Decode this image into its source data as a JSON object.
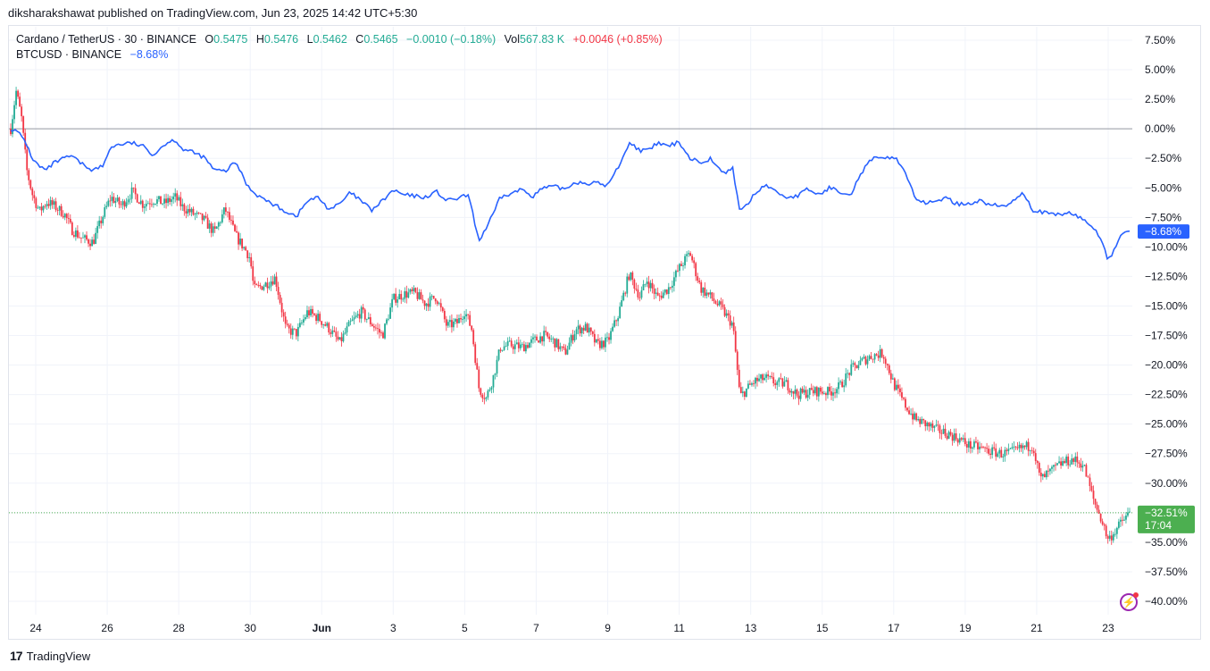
{
  "header": {
    "publisher_line": "diksharakshawat published on TradingView.com, Jun 23, 2025 14:42 UTC+5:30"
  },
  "legend": {
    "symbol": "Cardano / TetherUS · 30 · BINANCE",
    "o_label": "O",
    "o_value": "0.5475",
    "h_label": "H",
    "h_value": "0.5476",
    "l_label": "L",
    "l_value": "0.5462",
    "c_label": "C",
    "c_value": "0.5465",
    "change": "−0.0010 (−0.18%)",
    "vol_label": "Vol",
    "vol_value": "567.83 K",
    "vol_change": "+0.0046 (+0.85%)",
    "compare_symbol": "BTCUSD · BINANCE",
    "compare_value": "−8.68%"
  },
  "footer": {
    "logo": "17",
    "brand": "TradingView"
  },
  "icons": {
    "bottom_right": "lightning-icon"
  },
  "colors": {
    "up": "#22ab94",
    "down": "#f23645",
    "compare_line": "#2962ff",
    "grid": "#f0f3fa",
    "zero_line": "#9598a1",
    "last_price": "#4caf50"
  },
  "chart_data": {
    "type": "line",
    "y_unit": "%",
    "ylim": [
      -41,
      9
    ],
    "y_ticks": [
      "7.50%",
      "5.00%",
      "2.50%",
      "0.00%",
      "−2.50%",
      "−5.00%",
      "−7.50%",
      "−10.00%",
      "−12.50%",
      "−15.00%",
      "−17.50%",
      "−20.00%",
      "−22.50%",
      "−25.00%",
      "−27.50%",
      "−30.00%",
      "−32.50%",
      "−35.00%",
      "−37.50%",
      "−40.00%"
    ],
    "y_tick_values": [
      7.5,
      5,
      2.5,
      0,
      -2.5,
      -5,
      -7.5,
      -10,
      -12.5,
      -15,
      -17.5,
      -20,
      -22.5,
      -25,
      -27.5,
      -30,
      -32.5,
      -35,
      -37.5,
      -40
    ],
    "x_ticks": [
      "24",
      "26",
      "28",
      "30",
      "Jun",
      "3",
      "5",
      "7",
      "9",
      "11",
      "13",
      "15",
      "17",
      "19",
      "21",
      "23"
    ],
    "x_tick_days": [
      24,
      26,
      28,
      30,
      32,
      34,
      36,
      38,
      40,
      42,
      44,
      46,
      48,
      50,
      52,
      54
    ],
    "x_range_days": [
      23.3,
      54.6
    ],
    "series": [
      {
        "name": "BTCUSD · BINANCE",
        "style": "line",
        "x": [
          23.3,
          23.5,
          23.7,
          23.9,
          24.1,
          24.3,
          24.5,
          24.8,
          25.0,
          25.3,
          25.6,
          25.9,
          26.1,
          26.4,
          26.7,
          27.0,
          27.3,
          27.6,
          27.9,
          28.1,
          28.4,
          28.7,
          29.0,
          29.3,
          29.6,
          29.9,
          30.1,
          30.4,
          30.7,
          31.0,
          31.3,
          31.6,
          31.9,
          32.2,
          32.5,
          32.8,
          33.1,
          33.4,
          33.7,
          34.0,
          34.3,
          34.6,
          34.9,
          35.2,
          35.5,
          35.8,
          36.1,
          36.4,
          36.6,
          36.8,
          37.0,
          37.3,
          37.6,
          37.9,
          38.2,
          38.5,
          38.8,
          39.1,
          39.4,
          39.7,
          40.0,
          40.3,
          40.6,
          40.9,
          41.1,
          41.4,
          41.7,
          42.0,
          42.3,
          42.6,
          42.9,
          43.2,
          43.5,
          43.7,
          43.9,
          44.1,
          44.4,
          44.7,
          45.0,
          45.3,
          45.6,
          45.9,
          46.2,
          46.5,
          46.8,
          47.1,
          47.4,
          47.7,
          48.0,
          48.3,
          48.6,
          48.9,
          49.2,
          49.5,
          49.8,
          50.1,
          50.4,
          50.7,
          51.0,
          51.3,
          51.6,
          51.9,
          52.1,
          52.3,
          52.6,
          52.9,
          53.2,
          53.4,
          53.6,
          53.8,
          54.0,
          54.2,
          54.4,
          54.6
        ],
        "values": [
          0.0,
          -0.3,
          -1.0,
          -2.5,
          -3.2,
          -3.5,
          -2.9,
          -2.5,
          -2.3,
          -3.0,
          -3.5,
          -3.1,
          -1.5,
          -1.3,
          -1.2,
          -1.5,
          -2.2,
          -1.3,
          -0.9,
          -1.7,
          -2.0,
          -2.4,
          -3.5,
          -3.6,
          -2.8,
          -4.7,
          -5.4,
          -6.0,
          -6.5,
          -7.0,
          -7.4,
          -6.1,
          -5.8,
          -6.8,
          -6.4,
          -5.4,
          -6.1,
          -6.9,
          -6.1,
          -5.2,
          -5.6,
          -5.7,
          -5.8,
          -5.3,
          -6.1,
          -5.9,
          -5.6,
          -9.5,
          -8.4,
          -7.2,
          -5.8,
          -5.5,
          -5.1,
          -5.7,
          -5.0,
          -4.9,
          -5.1,
          -4.5,
          -4.6,
          -4.6,
          -4.8,
          -3.2,
          -1.2,
          -1.8,
          -1.9,
          -1.2,
          -1.5,
          -1.1,
          -2.5,
          -2.8,
          -2.5,
          -3.8,
          -3.4,
          -7.0,
          -6.4,
          -5.6,
          -4.7,
          -5.3,
          -5.8,
          -5.7,
          -5.1,
          -5.6,
          -5.0,
          -5.3,
          -5.5,
          -3.7,
          -2.5,
          -2.6,
          -2.3,
          -3.5,
          -5.8,
          -6.4,
          -6.0,
          -5.9,
          -6.4,
          -6.3,
          -6.1,
          -6.4,
          -6.6,
          -6.3,
          -5.3,
          -6.9,
          -7.0,
          -7.2,
          -7.3,
          -7.1,
          -7.5,
          -7.9,
          -8.4,
          -9.3,
          -11.1,
          -10.2,
          -8.7,
          -8.7
        ]
      },
      {
        "name": "Cardano / TetherUS · 30 · BINANCE",
        "style": "candles",
        "x": [
          23.3,
          23.45,
          23.6,
          23.75,
          23.9,
          24.1,
          24.3,
          24.5,
          24.8,
          25.0,
          25.3,
          25.6,
          25.9,
          26.1,
          26.4,
          26.7,
          27.0,
          27.3,
          27.6,
          27.9,
          28.1,
          28.4,
          28.7,
          29.0,
          29.3,
          29.6,
          29.9,
          30.0,
          30.1,
          30.4,
          30.7,
          31.0,
          31.3,
          31.6,
          31.9,
          32.2,
          32.5,
          32.8,
          33.1,
          33.4,
          33.7,
          34.0,
          34.3,
          34.6,
          34.9,
          35.2,
          35.5,
          35.8,
          36.0,
          36.2,
          36.4,
          36.6,
          36.8,
          37.0,
          37.3,
          37.6,
          37.9,
          38.2,
          38.5,
          38.8,
          39.1,
          39.4,
          39.7,
          40.0,
          40.3,
          40.6,
          40.9,
          41.1,
          41.4,
          41.7,
          42.0,
          42.3,
          42.6,
          42.9,
          43.2,
          43.5,
          43.7,
          43.9,
          44.1,
          44.4,
          44.7,
          45.0,
          45.3,
          45.6,
          45.9,
          46.2,
          46.5,
          46.8,
          47.1,
          47.4,
          47.7,
          48.0,
          48.3,
          48.6,
          48.9,
          49.2,
          49.5,
          49.8,
          50.1,
          50.4,
          50.7,
          51.0,
          51.3,
          51.6,
          51.9,
          52.0,
          52.1,
          52.4,
          52.7,
          53.0,
          53.3,
          53.6,
          53.8,
          54.0,
          54.2,
          54.4,
          54.6
        ],
        "values": [
          0.0,
          3.2,
          1.0,
          -3.5,
          -5.5,
          -7.0,
          -6.2,
          -6.5,
          -7.2,
          -8.5,
          -9.3,
          -9.6,
          -7.2,
          -5.8,
          -6.5,
          -5.3,
          -6.4,
          -6.0,
          -6.3,
          -5.8,
          -6.6,
          -7.2,
          -7.7,
          -8.8,
          -6.8,
          -9.1,
          -10.4,
          -11.0,
          -13.6,
          -13.2,
          -12.6,
          -17.0,
          -17.3,
          -15.5,
          -16.0,
          -16.9,
          -18.1,
          -16.5,
          -15.5,
          -16.5,
          -17.5,
          -14.4,
          -14.0,
          -13.9,
          -14.8,
          -14.2,
          -16.7,
          -16.4,
          -15.4,
          -17.0,
          -22.0,
          -22.8,
          -21.0,
          -18.5,
          -18.3,
          -18.5,
          -18.0,
          -17.5,
          -18.0,
          -19.0,
          -17.0,
          -16.8,
          -18.3,
          -18.0,
          -15.7,
          -12.3,
          -14.2,
          -12.8,
          -14.3,
          -13.5,
          -11.8,
          -10.5,
          -13.5,
          -14.3,
          -15.3,
          -16.6,
          -22.7,
          -22.0,
          -21.4,
          -21.1,
          -21.5,
          -21.6,
          -22.5,
          -22.3,
          -22.2,
          -22.3,
          -21.8,
          -20.4,
          -19.7,
          -19.2,
          -19.0,
          -21.6,
          -23.3,
          -24.6,
          -25.0,
          -25.5,
          -25.8,
          -26.2,
          -26.8,
          -27.0,
          -27.3,
          -27.5,
          -27.4,
          -27.0,
          -26.8,
          -28.3,
          -29.7,
          -29.0,
          -28.3,
          -28.0,
          -28.4,
          -31.5,
          -33.0,
          -34.8,
          -34.0,
          -33.2,
          -32.5
        ]
      }
    ],
    "last_value_labels": {
      "compare": "−8.68%",
      "main": "−32.51%",
      "countdown": "17:04"
    }
  }
}
